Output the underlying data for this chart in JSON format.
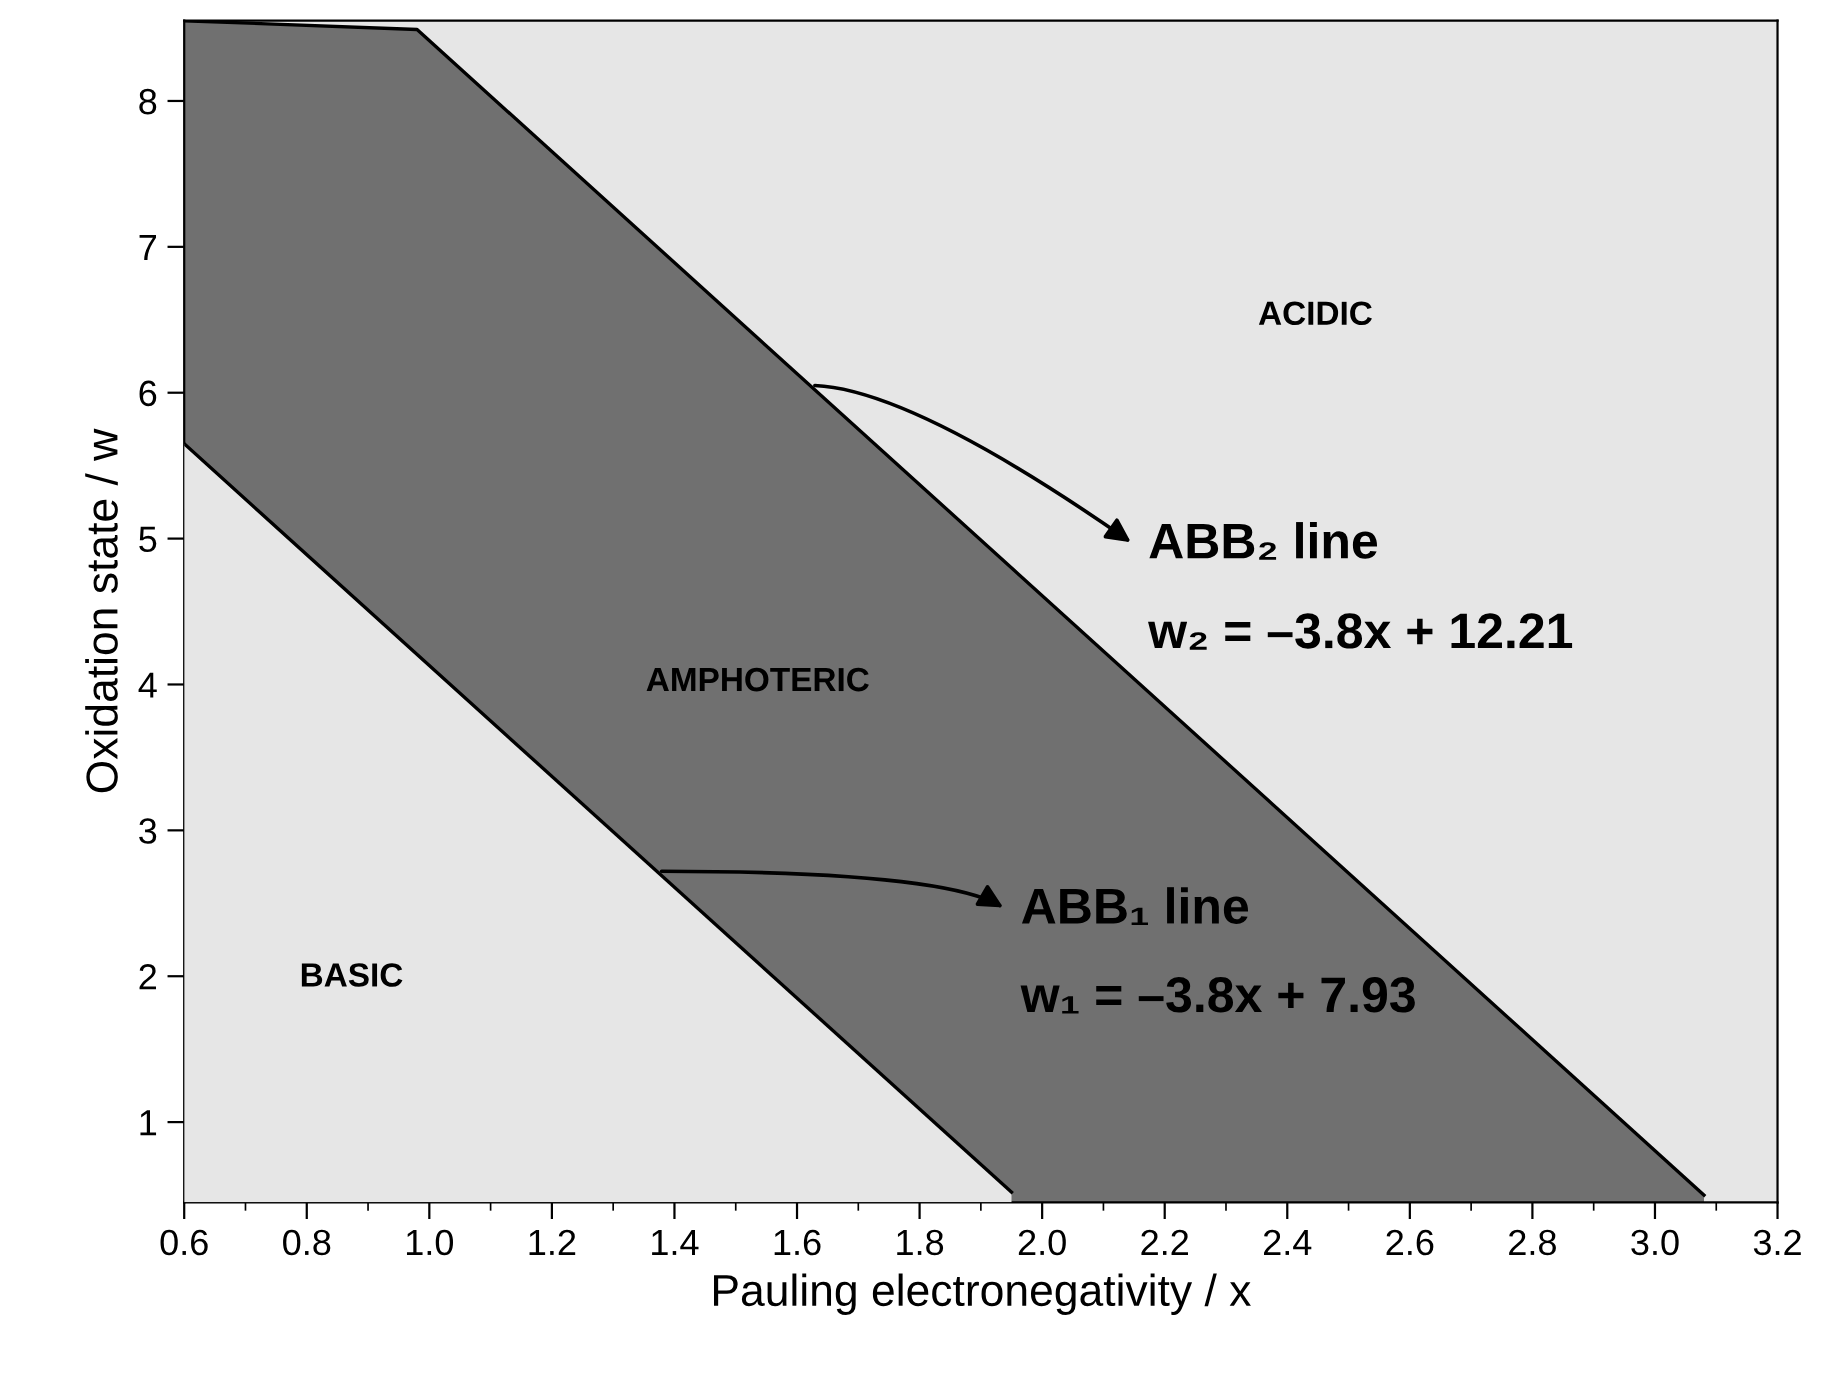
{
  "chart_data": {
    "type": "area",
    "xlabel": "Pauling electronegativity / x",
    "ylabel": "Oxidation state / w",
    "xlim": [
      0.6,
      3.2
    ],
    "ylim": [
      0.45,
      8.55
    ],
    "xticks": [
      {
        "value": 0.6,
        "label": "0.6"
      },
      {
        "value": 0.8,
        "label": "0.8"
      },
      {
        "value": 1.0,
        "label": "1.0"
      },
      {
        "value": 1.2,
        "label": "1.2"
      },
      {
        "value": 1.4,
        "label": "1.4"
      },
      {
        "value": 1.6,
        "label": "1.6"
      },
      {
        "value": 1.8,
        "label": "1.8"
      },
      {
        "value": 2.0,
        "label": "2.0"
      },
      {
        "value": 2.2,
        "label": "2.2"
      },
      {
        "value": 2.4,
        "label": "2.4"
      },
      {
        "value": 2.6,
        "label": "2.6"
      },
      {
        "value": 2.8,
        "label": "2.8"
      },
      {
        "value": 3.0,
        "label": "3.0"
      },
      {
        "value": 3.2,
        "label": "3.2"
      }
    ],
    "yticks": [
      1,
      2,
      3,
      4,
      5,
      6,
      7,
      8
    ],
    "grid": false,
    "legend": false,
    "series": [
      {
        "color": "#707070",
        "x": [
          0.6,
          0.98,
          3.08
        ],
        "values": [
          8.55,
          8.49,
          0.5
        ]
      },
      {
        "color": "#e6e6e6",
        "x": [
          0.6,
          1.95
        ],
        "values": [
          5.65,
          0.52
        ]
      }
    ],
    "annotations": [
      "ACIDIC",
      "AMPHOTERIC",
      "BASIC",
      {
        "text": "ABB₂ line",
        "x": 1.62,
        "y": 6.05
      },
      "w₂ = –3.8x + 12.21",
      {
        "text": "ABB₁ line",
        "x": 1.37,
        "y": 2.72
      },
      "w₁ = –3.8x + 7.93"
    ]
  }
}
